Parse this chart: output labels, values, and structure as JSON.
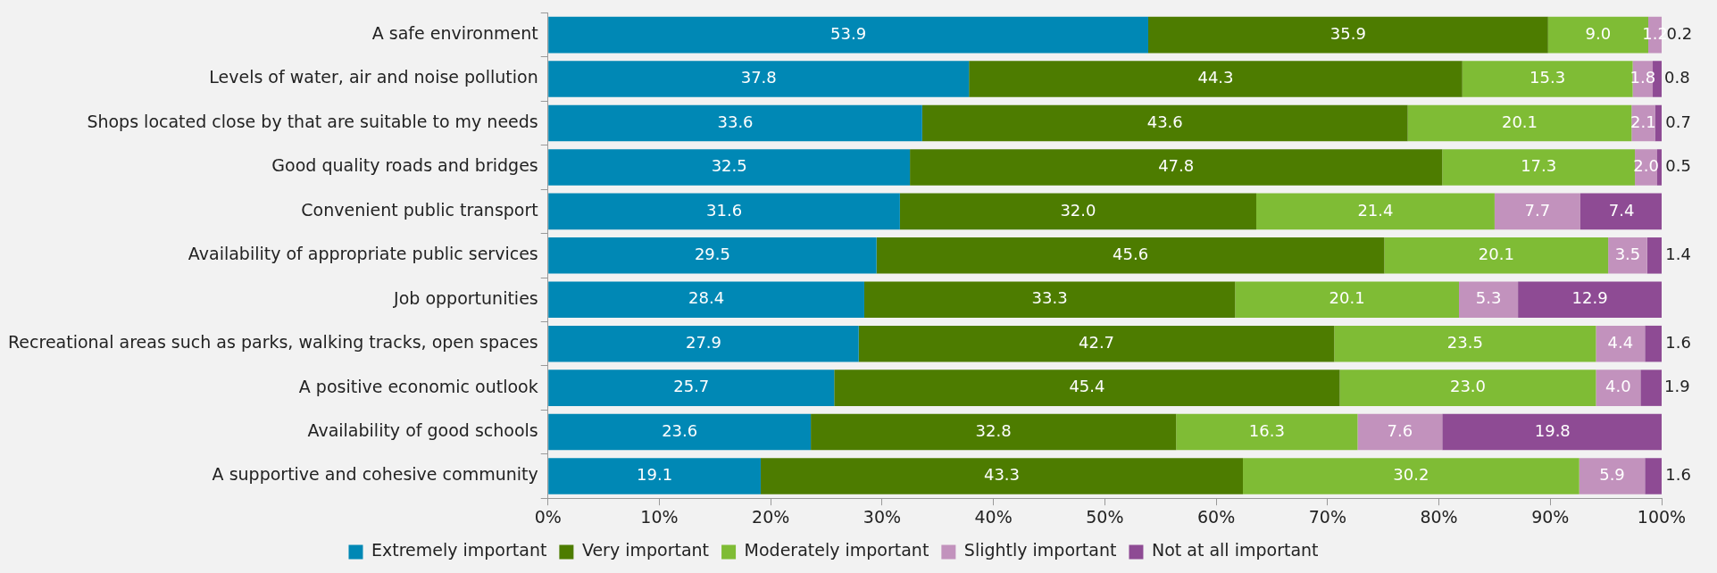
{
  "chart_data": {
    "type": "bar",
    "orientation": "horizontal",
    "stacked": true,
    "grid": false,
    "legend": "bottom",
    "categories": [
      "A safe environment",
      "Levels of water, air and noise pollution",
      "Shops located close by that are suitable to my needs",
      "Good quality roads and bridges",
      "Convenient public transport",
      "Availability of appropriate public services",
      "Job opportunities",
      "Recreational areas such as parks, walking tracks, open spaces",
      "A positive economic outlook",
      "Availability of good schools",
      "A supportive and cohesive community"
    ],
    "series": [
      {
        "name": "Extremely important",
        "color": "#0088b5",
        "values": [
          53.9,
          37.8,
          33.6,
          32.5,
          31.6,
          29.5,
          28.4,
          27.9,
          25.7,
          23.6,
          19.1
        ],
        "value_labels": [
          "53.9",
          "37.8",
          "33.6",
          "32.5",
          "31.6",
          "29.5",
          "28.4",
          "27.9",
          "25.7",
          "23.6",
          "19.1"
        ]
      },
      {
        "name": "Very important",
        "color": "#4d7c00",
        "values": [
          35.9,
          44.3,
          43.6,
          47.8,
          32.0,
          45.6,
          33.3,
          42.7,
          45.4,
          32.8,
          43.3
        ],
        "value_labels": [
          "35.9",
          "44.3",
          "43.6",
          "47.8",
          "32.0",
          "45.6",
          "33.3",
          "42.7",
          "45.4",
          "32.8",
          "43.3"
        ]
      },
      {
        "name": "Moderately important",
        "color": "#7fbc35",
        "values": [
          9.0,
          15.3,
          20.1,
          17.3,
          21.4,
          20.1,
          20.1,
          23.5,
          23.0,
          16.3,
          30.2
        ],
        "value_labels": [
          "9.0",
          "15.3",
          "20.1",
          "17.3",
          "21.4",
          "20.1",
          "20.1",
          "23.5",
          "23.0",
          "16.3",
          "30.2"
        ]
      },
      {
        "name": "Slightly important",
        "color": "#c292bd",
        "values": [
          1.2,
          1.8,
          2.1,
          2.0,
          7.7,
          3.5,
          5.3,
          4.4,
          4.0,
          7.6,
          5.9
        ],
        "value_labels": [
          "1.2",
          "1.8",
          "2.1",
          "2.0",
          "7.7",
          "3.5",
          "5.3",
          "4.4",
          "4.0",
          "7.6",
          "5.9"
        ]
      },
      {
        "name": "Not at all important",
        "color": "#8e4b94",
        "values": [
          0.2,
          0.8,
          0.7,
          0.5,
          7.4,
          1.4,
          12.9,
          1.6,
          1.9,
          19.8,
          1.6
        ],
        "value_labels": [
          "0.2",
          "0.8",
          "0.7",
          "0.5",
          "7.4",
          "1.4",
          "12.9",
          "1.6",
          "1.9",
          "19.8",
          "1.6"
        ]
      }
    ],
    "xlim": [
      0,
      100
    ],
    "xticks": [
      {
        "value": 0,
        "label": "0%"
      },
      {
        "value": 10,
        "label": "10%"
      },
      {
        "value": 20,
        "label": "20%"
      },
      {
        "value": 30,
        "label": "30%"
      },
      {
        "value": 40,
        "label": "40%"
      },
      {
        "value": 50,
        "label": "50%"
      },
      {
        "value": 60,
        "label": "60%"
      },
      {
        "value": 70,
        "label": "70%"
      },
      {
        "value": 80,
        "label": "80%"
      },
      {
        "value": 90,
        "label": "90%"
      },
      {
        "value": 100,
        "label": "100%"
      }
    ]
  }
}
